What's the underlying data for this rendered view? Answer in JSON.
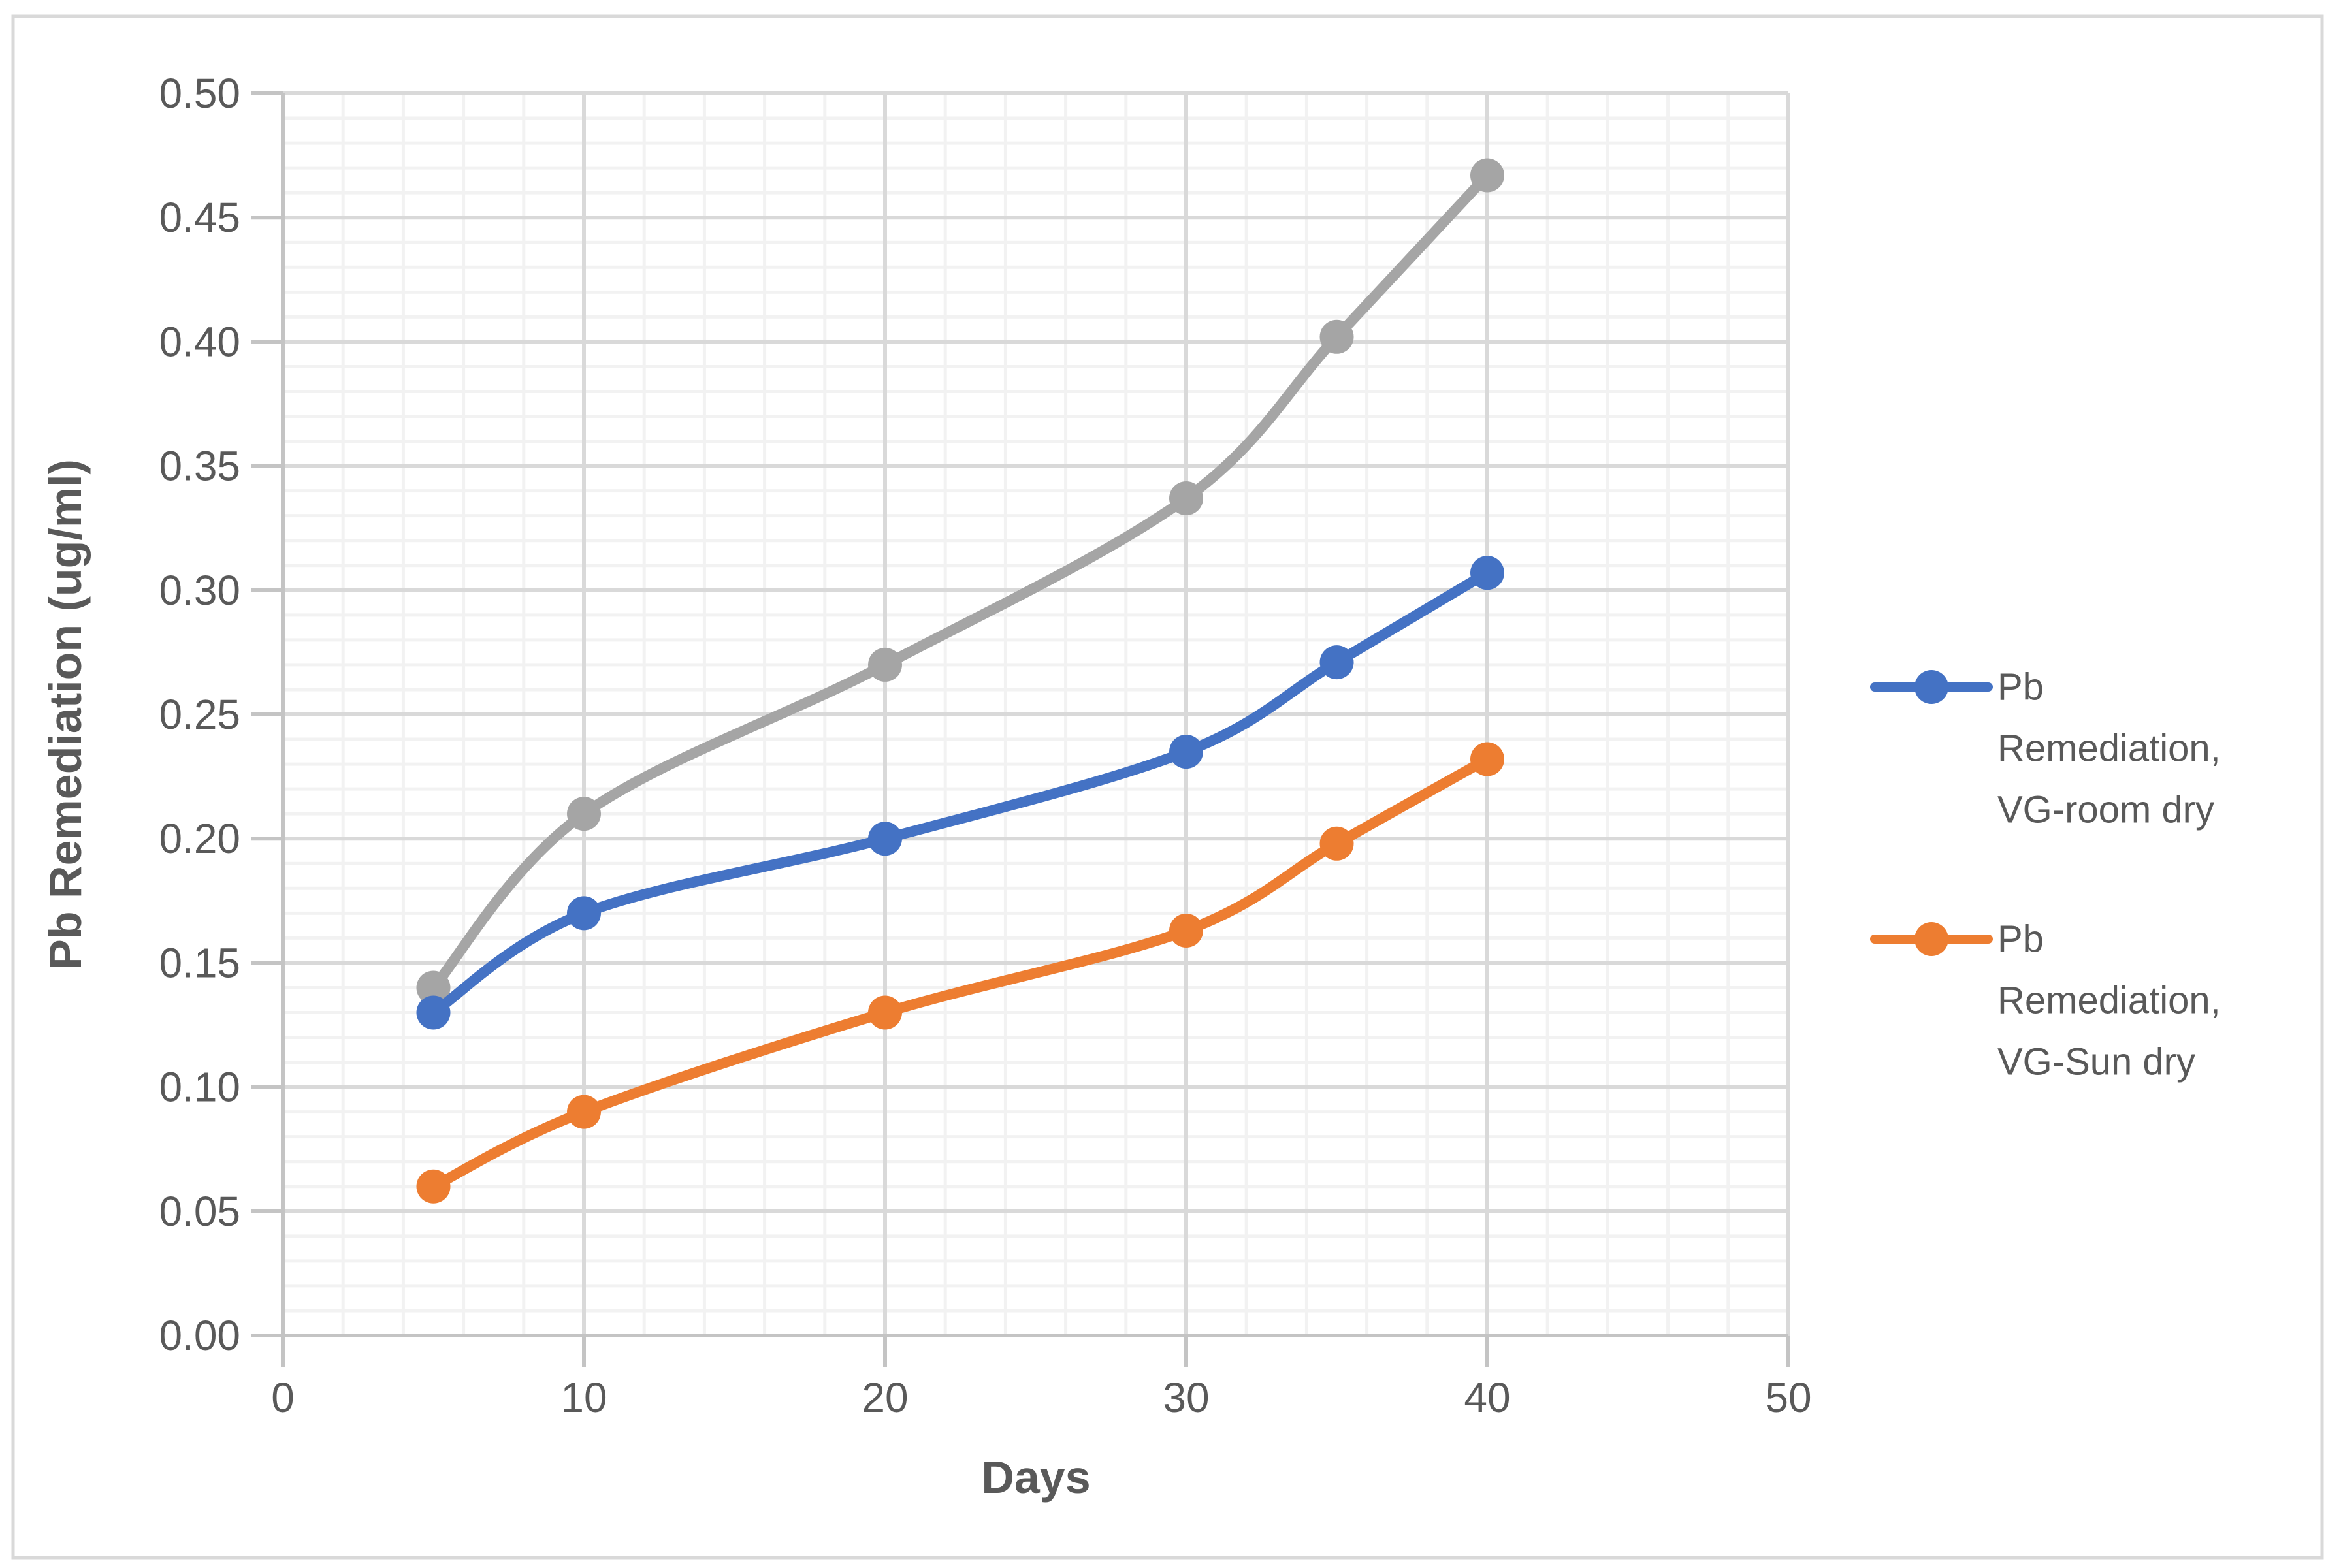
{
  "chart_data": {
    "type": "line",
    "title": "",
    "xlabel": "Days",
    "ylabel": "Pb Remediation (ug/ml)",
    "xlim": [
      0,
      50
    ],
    "ylim": [
      0.0,
      0.5
    ],
    "x_major_tick_step": 10,
    "x_minor_tick_step": 2,
    "y_major_tick_step": 0.05,
    "y_minor_tick_step": 0.01,
    "x_tick_labels": [
      "0",
      "10",
      "20",
      "30",
      "40",
      "50"
    ],
    "y_tick_labels": [
      "0.00",
      "0.05",
      "0.10",
      "0.15",
      "0.20",
      "0.25",
      "0.30",
      "0.35",
      "0.40",
      "0.45",
      "0.50"
    ],
    "grid": "major and minor gridlines on both axes",
    "legend_position": "right",
    "line_style": "smoothed with round point markers",
    "x": [
      5,
      10,
      20,
      30,
      35,
      40
    ],
    "series": [
      {
        "name": "",
        "in_legend": false,
        "color": "#A5A5A5",
        "values": [
          0.14,
          0.21,
          0.27,
          0.337,
          0.402,
          0.467
        ]
      },
      {
        "name": "Pb Remediation, VG-room dry",
        "in_legend": true,
        "legend_lines": [
          "Pb",
          "Remediation,",
          "VG-room dry"
        ],
        "color": "#4472C4",
        "values": [
          0.13,
          0.17,
          0.2,
          0.235,
          0.271,
          0.307
        ]
      },
      {
        "name": "Pb Remediation, VG-Sun dry",
        "in_legend": true,
        "legend_lines": [
          "Pb",
          "Remediation,",
          "VG-Sun dry"
        ],
        "color": "#ED7D31",
        "values": [
          0.06,
          0.09,
          0.13,
          0.163,
          0.198,
          0.232
        ]
      }
    ]
  },
  "colors": {
    "text": "#595959",
    "axis": "#C4C4C4",
    "grid_major": "#D9D9D9",
    "grid_minor": "#F2F2F2",
    "border": "#D9D9D9",
    "background": "#FFFFFF"
  }
}
